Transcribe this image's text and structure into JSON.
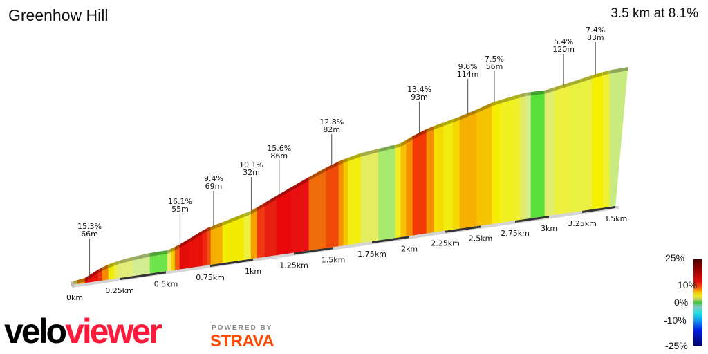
{
  "header": {
    "title": "Greenhow Hill",
    "summary": "3.5 km at 8.1%"
  },
  "chart_data": {
    "type": "area",
    "title": "Greenhow Hill",
    "subtitle": "3.5 km at 8.1%",
    "distance_unit": "km",
    "xlim": [
      0,
      3.5
    ],
    "x_ticks": [
      "0km",
      "0.25km",
      "0.5km",
      "0.75km",
      "1km",
      "1.25km",
      "1.5km",
      "1.75km",
      "2km",
      "2.25km",
      "2.5km",
      "2.75km",
      "3km",
      "3.25km",
      "3.5km"
    ],
    "x_tick_values": [
      0,
      0.25,
      0.5,
      0.75,
      1,
      1.25,
      1.5,
      1.75,
      2,
      2.25,
      2.5,
      2.75,
      3,
      3.25,
      3.5
    ],
    "segments": [
      {
        "start_km": 0.0,
        "color": "#e6e860"
      },
      {
        "start_km": 0.026,
        "color": "#f59000"
      },
      {
        "start_km": 0.066,
        "color": "#e61008"
      },
      {
        "start_km": 0.136,
        "color": "#f03010"
      },
      {
        "start_km": 0.158,
        "color": "#f58a00"
      },
      {
        "start_km": 0.191,
        "color": "#f2ea00"
      },
      {
        "start_km": 0.221,
        "color": "#ecee50"
      },
      {
        "start_km": 0.246,
        "color": "#e2ec78"
      },
      {
        "start_km": 0.321,
        "color": "#d2ec90"
      },
      {
        "start_km": 0.414,
        "color": "#6ee44a"
      },
      {
        "start_km": 0.508,
        "color": "#e8ee60"
      },
      {
        "start_km": 0.531,
        "color": "#f5d000"
      },
      {
        "start_km": 0.551,
        "color": "#f06010"
      },
      {
        "start_km": 0.578,
        "color": "#e40c08"
      },
      {
        "start_km": 0.629,
        "color": "#e81008"
      },
      {
        "start_km": 0.707,
        "color": "#f02810"
      },
      {
        "start_km": 0.734,
        "color": "#f05010"
      },
      {
        "start_km": 0.754,
        "color": "#f5b000"
      },
      {
        "start_km": 0.823,
        "color": "#f2ec00"
      },
      {
        "start_km": 0.948,
        "color": "#f0f040"
      },
      {
        "start_km": 0.988,
        "color": "#f5a000"
      },
      {
        "start_km": 1.025,
        "color": "#f03a10"
      },
      {
        "start_km": 1.072,
        "color": "#e82010"
      },
      {
        "start_km": 1.144,
        "color": "#e80808"
      },
      {
        "start_km": 1.229,
        "color": "#e81010"
      },
      {
        "start_km": 1.346,
        "color": "#f06c08"
      },
      {
        "start_km": 1.456,
        "color": "#f04a08"
      },
      {
        "start_km": 1.536,
        "color": "#f59000"
      },
      {
        "start_km": 1.567,
        "color": "#f5c800"
      },
      {
        "start_km": 1.594,
        "color": "#f2ec10"
      },
      {
        "start_km": 1.679,
        "color": "#e4ec60"
      },
      {
        "start_km": 1.794,
        "color": "#a8ea70"
      },
      {
        "start_km": 1.907,
        "color": "#f2ec20"
      },
      {
        "start_km": 1.944,
        "color": "#f5c000"
      },
      {
        "start_km": 1.981,
        "color": "#f59000"
      },
      {
        "start_km": 2.024,
        "color": "#f33a05"
      },
      {
        "start_km": 2.12,
        "color": "#f59000"
      },
      {
        "start_km": 2.173,
        "color": "#f5dc00"
      },
      {
        "start_km": 2.24,
        "color": "#f2ec10"
      },
      {
        "start_km": 2.304,
        "color": "#f5d800"
      },
      {
        "start_km": 2.353,
        "color": "#f5b000"
      },
      {
        "start_km": 2.475,
        "color": "#f5c400"
      },
      {
        "start_km": 2.585,
        "color": "#f5ec00"
      },
      {
        "start_km": 2.64,
        "color": "#f0f020"
      },
      {
        "start_km": 2.75,
        "color": "#eef030"
      },
      {
        "start_km": 2.791,
        "color": "#e0ea70"
      },
      {
        "start_km": 2.837,
        "color": "#d4ec90"
      },
      {
        "start_km": 2.867,
        "color": "#58e03a"
      },
      {
        "start_km": 2.969,
        "color": "#e0ee70"
      },
      {
        "start_km": 3.041,
        "color": "#eef040"
      },
      {
        "start_km": 3.172,
        "color": "#e8f040"
      },
      {
        "start_km": 3.25,
        "color": "#eaf040"
      },
      {
        "start_km": 3.328,
        "color": "#f5f000"
      },
      {
        "start_km": 3.406,
        "color": "#eef030"
      },
      {
        "start_km": 3.458,
        "color": "#c8ea80"
      }
    ],
    "annotations": [
      {
        "km": 0.09,
        "grade": "15.3%",
        "length": "66m"
      },
      {
        "km": 0.58,
        "grade": "16.1%",
        "length": "55m"
      },
      {
        "km": 0.77,
        "grade": "9.4%",
        "length": "69m"
      },
      {
        "km": 0.99,
        "grade": "10.1%",
        "length": "32m"
      },
      {
        "km": 1.16,
        "grade": "15.6%",
        "length": "86m"
      },
      {
        "km": 1.49,
        "grade": "12.8%",
        "length": "82m"
      },
      {
        "km": 2.07,
        "grade": "13.4%",
        "length": "93m"
      },
      {
        "km": 2.41,
        "grade": "9.6%",
        "length": "114m"
      },
      {
        "km": 2.6,
        "grade": "7.5%",
        "length": "56m"
      },
      {
        "km": 3.11,
        "grade": "5.4%",
        "length": "120m"
      },
      {
        "km": 3.35,
        "grade": "7.4%",
        "length": "83m"
      }
    ],
    "legend": {
      "title": "",
      "labels": [
        "25%",
        "10%",
        "0%",
        "-10%",
        "-25%"
      ],
      "placement": "bottom-right"
    }
  },
  "branding": {
    "logo_velo": "velo",
    "logo_viewer": "viewer",
    "powered_by": "POWERED BY",
    "strava": "STRAVA"
  }
}
